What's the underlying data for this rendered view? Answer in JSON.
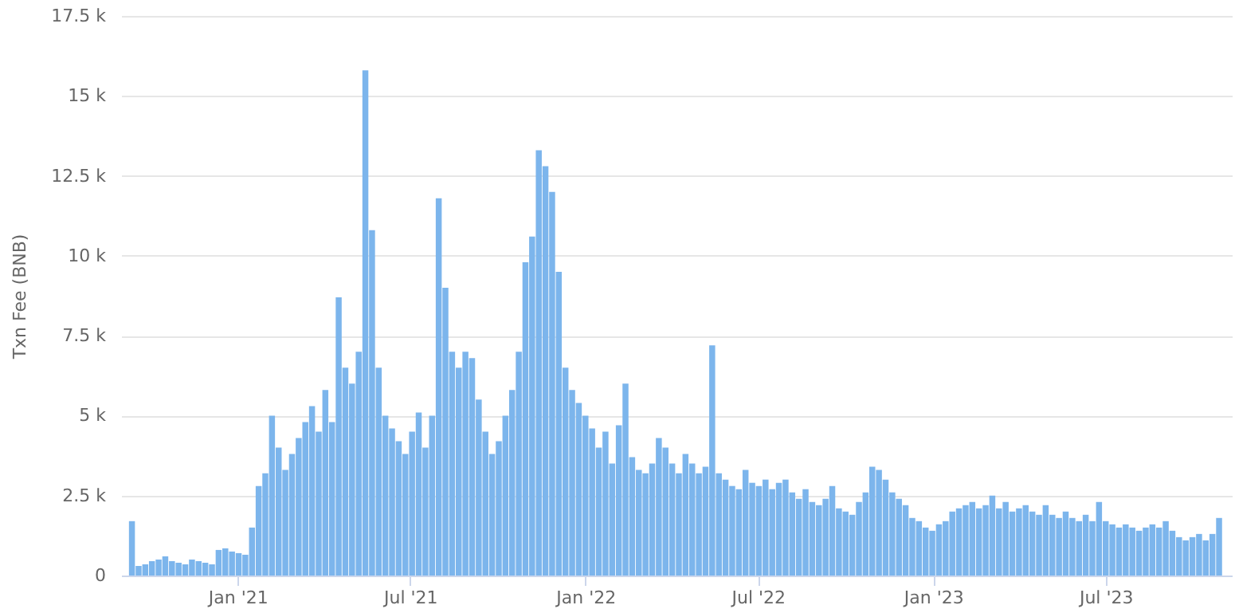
{
  "chart_data": {
    "type": "bar",
    "ylabel": "Txn Fee (BNB)",
    "x": [
      "2020-09-12",
      "2020-09-19",
      "2020-09-26",
      "2020-10-03",
      "2020-10-10",
      "2020-10-17",
      "2020-10-24",
      "2020-10-31",
      "2020-11-07",
      "2020-11-14",
      "2020-11-21",
      "2020-11-28",
      "2020-12-05",
      "2020-12-12",
      "2020-12-19",
      "2020-12-26",
      "2021-01-02",
      "2021-01-09",
      "2021-01-16",
      "2021-01-23",
      "2021-01-30",
      "2021-02-06",
      "2021-02-13",
      "2021-02-20",
      "2021-02-27",
      "2021-03-06",
      "2021-03-13",
      "2021-03-20",
      "2021-03-27",
      "2021-04-03",
      "2021-04-10",
      "2021-04-17",
      "2021-04-24",
      "2021-05-01",
      "2021-05-08",
      "2021-05-15",
      "2021-05-22",
      "2021-05-29",
      "2021-06-05",
      "2021-06-12",
      "2021-06-19",
      "2021-06-26",
      "2021-07-03",
      "2021-07-10",
      "2021-07-17",
      "2021-07-24",
      "2021-07-31",
      "2021-08-07",
      "2021-08-14",
      "2021-08-21",
      "2021-08-28",
      "2021-09-04",
      "2021-09-11",
      "2021-09-18",
      "2021-09-25",
      "2021-10-02",
      "2021-10-09",
      "2021-10-16",
      "2021-10-23",
      "2021-10-30",
      "2021-11-06",
      "2021-11-13",
      "2021-11-20",
      "2021-11-27",
      "2021-12-04",
      "2021-12-11",
      "2021-12-18",
      "2021-12-25",
      "2022-01-01",
      "2022-01-08",
      "2022-01-15",
      "2022-01-22",
      "2022-01-29",
      "2022-02-05",
      "2022-02-12",
      "2022-02-19",
      "2022-02-26",
      "2022-03-05",
      "2022-03-12",
      "2022-03-19",
      "2022-03-26",
      "2022-04-02",
      "2022-04-09",
      "2022-04-16",
      "2022-04-23",
      "2022-04-30",
      "2022-05-07",
      "2022-05-14",
      "2022-05-21",
      "2022-05-28",
      "2022-06-04",
      "2022-06-11",
      "2022-06-18",
      "2022-06-25",
      "2022-07-02",
      "2022-07-09",
      "2022-07-16",
      "2022-07-23",
      "2022-07-30",
      "2022-08-06",
      "2022-08-13",
      "2022-08-20",
      "2022-08-27",
      "2022-09-03",
      "2022-09-10",
      "2022-09-17",
      "2022-09-24",
      "2022-10-01",
      "2022-10-08",
      "2022-10-15",
      "2022-10-22",
      "2022-10-29",
      "2022-11-05",
      "2022-11-12",
      "2022-11-19",
      "2022-11-26",
      "2022-12-03",
      "2022-12-10",
      "2022-12-17",
      "2022-12-24",
      "2022-12-31",
      "2023-01-07",
      "2023-01-14",
      "2023-01-21",
      "2023-01-28",
      "2023-02-04",
      "2023-02-11",
      "2023-02-18",
      "2023-02-25",
      "2023-03-04",
      "2023-03-11",
      "2023-03-18",
      "2023-03-25",
      "2023-04-01",
      "2023-04-08",
      "2023-04-15",
      "2023-04-22",
      "2023-04-29",
      "2023-05-06",
      "2023-05-13",
      "2023-05-20",
      "2023-05-27",
      "2023-06-03",
      "2023-06-10",
      "2023-06-17",
      "2023-06-24",
      "2023-07-01",
      "2023-07-08",
      "2023-07-15",
      "2023-07-22",
      "2023-07-29",
      "2023-08-05",
      "2023-08-12",
      "2023-08-19",
      "2023-08-26",
      "2023-09-02",
      "2023-09-09",
      "2023-09-16",
      "2023-09-23",
      "2023-09-30",
      "2023-10-07",
      "2023-10-14",
      "2023-10-21",
      "2023-10-28"
    ],
    "values": [
      1700,
      300,
      350,
      450,
      500,
      600,
      450,
      400,
      350,
      500,
      450,
      400,
      350,
      800,
      850,
      750,
      700,
      650,
      1500,
      2800,
      3200,
      5000,
      4000,
      3300,
      3800,
      4300,
      4800,
      5300,
      4500,
      5800,
      4800,
      8700,
      6500,
      6000,
      7000,
      15800,
      10800,
      6500,
      5000,
      4600,
      4200,
      3800,
      4500,
      5100,
      4000,
      5000,
      11800,
      9000,
      7000,
      6500,
      7000,
      6800,
      5500,
      4500,
      3800,
      4200,
      5000,
      5800,
      7000,
      9800,
      10600,
      13300,
      12800,
      12000,
      9500,
      6500,
      5800,
      5400,
      5000,
      4600,
      4000,
      4500,
      3500,
      4700,
      6000,
      3700,
      3300,
      3200,
      3500,
      4300,
      4000,
      3500,
      3200,
      3800,
      3500,
      3200,
      3400,
      7200,
      3200,
      3000,
      2800,
      2700,
      3300,
      2900,
      2800,
      3000,
      2700,
      2900,
      3000,
      2600,
      2400,
      2700,
      2300,
      2200,
      2400,
      2800,
      2100,
      2000,
      1900,
      2300,
      2600,
      3400,
      3300,
      3000,
      2600,
      2400,
      2200,
      1800,
      1700,
      1500,
      1400,
      1600,
      1700,
      2000,
      2100,
      2200,
      2300,
      2100,
      2200,
      2500,
      2100,
      2300,
      2000,
      2100,
      2200,
      2000,
      1900,
      2200,
      1900,
      1800,
      2000,
      1800,
      1700,
      1900,
      1700,
      2300,
      1700,
      1600,
      1500,
      1600,
      1500,
      1400,
      1500,
      1600,
      1500,
      1700,
      1400,
      1200,
      1100,
      1200,
      1300,
      1100,
      1300,
      1800
    ],
    "color": "#7cb5ec",
    "xlim": [
      "2020-09-09",
      "2023-11-02"
    ],
    "xticks": [
      {
        "value": "2021-01-01",
        "label": "Jan '21"
      },
      {
        "value": "2021-07-01",
        "label": "Jul '21"
      },
      {
        "value": "2022-01-01",
        "label": "Jan '22"
      },
      {
        "value": "2022-07-01",
        "label": "Jul '22"
      },
      {
        "value": "2023-01-01",
        "label": "Jan '23"
      },
      {
        "value": "2023-07-01",
        "label": "Jul '23"
      }
    ],
    "ylim": [
      0,
      17500
    ],
    "yticks": [
      0,
      {
        "value": 2500,
        "label": "2.5 k"
      },
      {
        "value": 5000,
        "label": "5 k"
      },
      {
        "value": 7500,
        "label": "7.5 k"
      },
      {
        "value": 10000,
        "label": "10 k"
      },
      {
        "value": 12500,
        "label": "12.5 k"
      },
      {
        "value": 15000,
        "label": "15 k"
      },
      {
        "value": 17500,
        "label": "17.5 k"
      }
    ],
    "grid": "y"
  }
}
